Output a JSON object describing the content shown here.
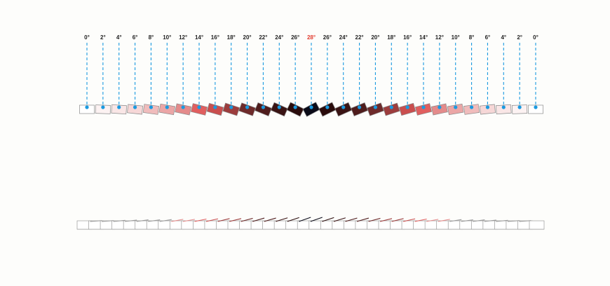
{
  "angle_unit": "°",
  "peak_angle": 28,
  "panels": [
    {
      "angle": 0,
      "fill": "#ffffff"
    },
    {
      "angle": 2,
      "fill": "#fcf2f2"
    },
    {
      "angle": 4,
      "fill": "#f9e6e6"
    },
    {
      "angle": 6,
      "fill": "#f6d7d7"
    },
    {
      "angle": 8,
      "fill": "#f0bcbc"
    },
    {
      "angle": 10,
      "fill": "#eba6a6"
    },
    {
      "angle": 12,
      "fill": "#e48b8b"
    },
    {
      "angle": 14,
      "fill": "#e05f5f"
    },
    {
      "angle": 16,
      "fill": "#c94e4e"
    },
    {
      "angle": 18,
      "fill": "#9c3d3d"
    },
    {
      "angle": 20,
      "fill": "#6e2b2b"
    },
    {
      "angle": 22,
      "fill": "#4f1d1d"
    },
    {
      "angle": 24,
      "fill": "#3a1414"
    },
    {
      "angle": 26,
      "fill": "#2a0c0c"
    },
    {
      "angle": 28,
      "fill": "#0b0b18"
    },
    {
      "angle": 26,
      "fill": "#2a0c0c"
    },
    {
      "angle": 24,
      "fill": "#3a1414"
    },
    {
      "angle": 22,
      "fill": "#4f1d1d"
    },
    {
      "angle": 20,
      "fill": "#6e2b2b"
    },
    {
      "angle": 18,
      "fill": "#9c3d3d"
    },
    {
      "angle": 16,
      "fill": "#c94e4e"
    },
    {
      "angle": 14,
      "fill": "#e05f5f"
    },
    {
      "angle": 12,
      "fill": "#e48b8b"
    },
    {
      "angle": 10,
      "fill": "#eba6a6"
    },
    {
      "angle": 8,
      "fill": "#f0bcbc"
    },
    {
      "angle": 6,
      "fill": "#f6d7d7"
    },
    {
      "angle": 4,
      "fill": "#f9e6e6"
    },
    {
      "angle": 2,
      "fill": "#fcf2f2"
    },
    {
      "angle": 0,
      "fill": "#ffffff"
    }
  ],
  "colors": {
    "leader_line": "#1a9ae0",
    "peak_label": "#e23b2e",
    "label": "#222222",
    "panel_stroke": "#8a8a8a",
    "elevation_stroke": "#9a9a9a"
  }
}
